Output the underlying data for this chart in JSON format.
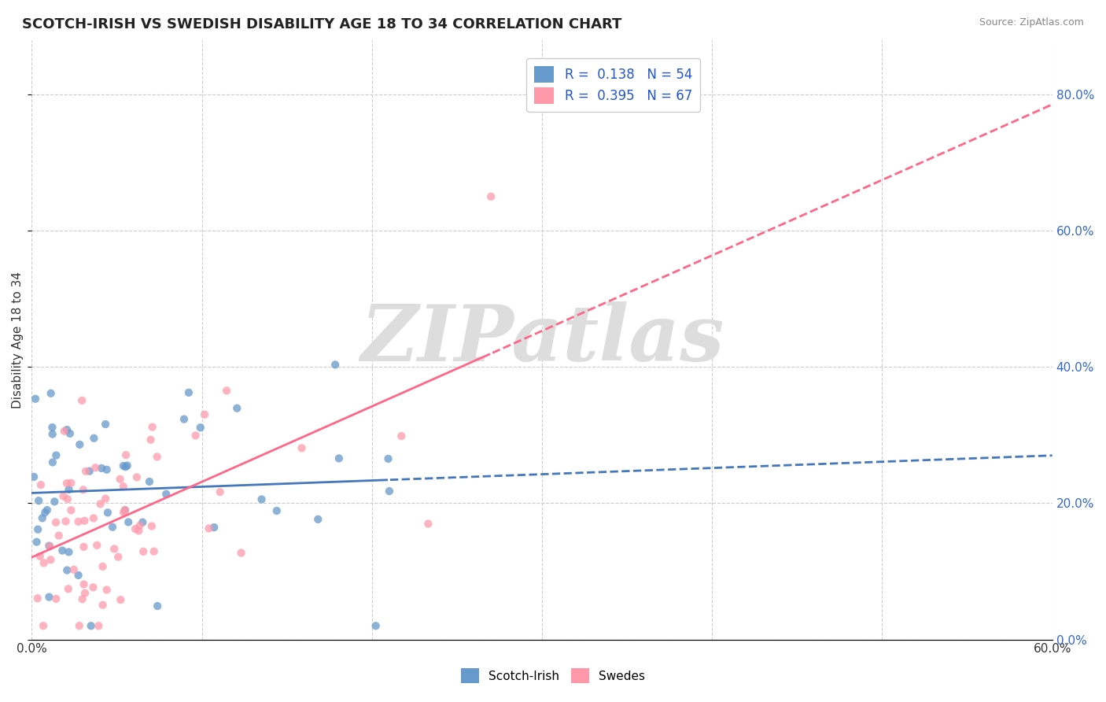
{
  "title": "SCOTCH-IRISH VS SWEDISH DISABILITY AGE 18 TO 34 CORRELATION CHART",
  "source_text": "Source: ZipAtlas.com",
  "xlabel": "",
  "ylabel": "Disability Age 18 to 34",
  "xlim": [
    0.0,
    0.6
  ],
  "ylim": [
    0.0,
    0.88
  ],
  "R_scotch": 0.138,
  "N_scotch": 54,
  "R_swedes": 0.395,
  "N_swedes": 67,
  "scotch_color": "#6699cc",
  "swedes_color": "#ff99aa",
  "scotch_line_color": "#4477bb",
  "swedes_line_color": "#ff6688",
  "background_color": "#ffffff",
  "watermark_text": "ZIPatlas",
  "watermark_color": "#dddddd",
  "legend_N_color": "#2255cc"
}
